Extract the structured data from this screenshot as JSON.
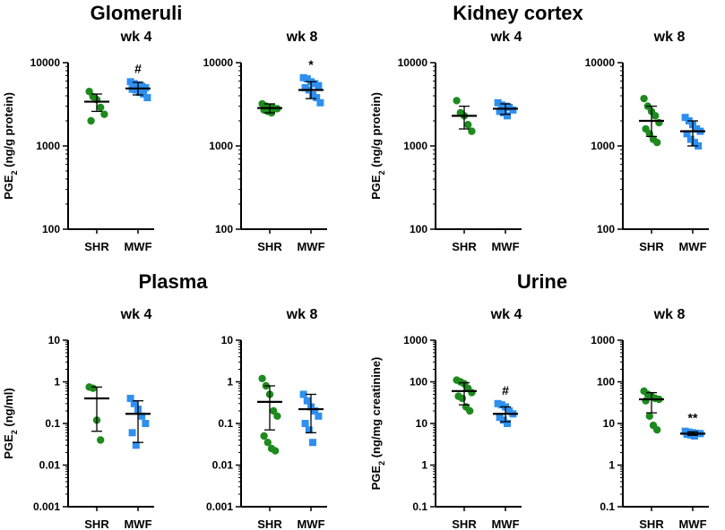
{
  "figure": {
    "colors": {
      "SHR": "#1e8a1e",
      "MWF": "#2e8fef",
      "axis": "#000000"
    },
    "markers": {
      "SHR": "circle",
      "MWF": "square"
    }
  },
  "groups": [
    {
      "title": "Glomeruli",
      "ylabel_prefix": "PGE",
      "ylabel_sub": "2",
      "ylabel_unit": " (ng/g protein)"
    },
    {
      "title": "Kidney cortex",
      "ylabel_prefix": "PGE",
      "ylabel_sub": "2",
      "ylabel_unit": " (ng/g protein)"
    },
    {
      "title": "Plasma",
      "ylabel_prefix": "PGE",
      "ylabel_sub": "2",
      "ylabel_unit": " (ng/ml)"
    },
    {
      "title": "Urine",
      "ylabel_prefix": "PGE",
      "ylabel_sub": "2",
      "ylabel_unit": " (ng/mg creatinine)"
    }
  ],
  "chart_data": [
    {
      "type": "scatter",
      "title": "wk 4",
      "group": "Glomeruli",
      "yscale": "log",
      "ylim": [
        100,
        10000
      ],
      "yticks": [
        100,
        1000,
        10000
      ],
      "ytick_labels": [
        "100",
        "1000",
        "10000"
      ],
      "categories": [
        "SHR",
        "MWF"
      ],
      "series": [
        {
          "name": "SHR",
          "points": [
            4500,
            3900,
            3600,
            2900,
            2400,
            2000
          ],
          "mean": 3400,
          "err": [
            2600,
            4200
          ]
        },
        {
          "name": "MWF",
          "points": [
            5900,
            5600,
            5400,
            5200,
            5000,
            4800,
            4700,
            4400,
            4200,
            3800
          ],
          "mean": 4900,
          "err": [
            4100,
            5800
          ]
        }
      ],
      "annotations": [
        {
          "category": "MWF",
          "text": "#"
        }
      ]
    },
    {
      "type": "scatter",
      "title": "wk 8",
      "group": "Glomeruli",
      "yscale": "log",
      "ylim": [
        100,
        10000
      ],
      "yticks": [
        100,
        1000,
        10000
      ],
      "ytick_labels": [
        "100",
        "1000",
        "10000"
      ],
      "categories": [
        "SHR",
        "MWF"
      ],
      "series": [
        {
          "name": "SHR",
          "points": [
            3200,
            3000,
            2900,
            2850,
            2800,
            2700,
            2600,
            2500
          ],
          "mean": 2850,
          "err": [
            2500,
            3200
          ]
        },
        {
          "name": "MWF",
          "points": [
            6600,
            6400,
            5900,
            5600,
            5300,
            5000,
            4700,
            4100,
            3800,
            3300
          ],
          "mean": 4700,
          "err": [
            3700,
            5900
          ]
        }
      ],
      "annotations": [
        {
          "category": "MWF",
          "text": "*"
        }
      ]
    },
    {
      "type": "scatter",
      "title": "wk 4",
      "group": "Kidney cortex",
      "yscale": "log",
      "ylim": [
        100,
        10000
      ],
      "yticks": [
        100,
        1000,
        10000
      ],
      "ytick_labels": [
        "100",
        "1000",
        "10000"
      ],
      "categories": [
        "SHR",
        "MWF"
      ],
      "series": [
        {
          "name": "SHR",
          "points": [
            3500,
            2500,
            2300,
            1800,
            1500
          ],
          "mean": 2300,
          "err": [
            1600,
            3000
          ]
        },
        {
          "name": "MWF",
          "points": [
            3300,
            3100,
            3000,
            2900,
            2700,
            2600,
            2500,
            2300
          ],
          "mean": 2800,
          "err": [
            2400,
            3200
          ]
        }
      ],
      "annotations": []
    },
    {
      "type": "scatter",
      "title": "wk 8",
      "group": "Kidney cortex",
      "yscale": "log",
      "ylim": [
        100,
        10000
      ],
      "yticks": [
        100,
        1000,
        10000
      ],
      "ytick_labels": [
        "100",
        "1000",
        "10000"
      ],
      "categories": [
        "SHR",
        "MWF"
      ],
      "series": [
        {
          "name": "SHR",
          "points": [
            3700,
            3000,
            2600,
            2300,
            1900,
            1600,
            1400,
            1200,
            1100
          ],
          "mean": 2000,
          "err": [
            1300,
            3000
          ]
        },
        {
          "name": "MWF",
          "points": [
            2200,
            2000,
            1800,
            1600,
            1500,
            1400,
            1200,
            1100,
            1000
          ],
          "mean": 1500,
          "err": [
            1000,
            2000
          ]
        }
      ],
      "annotations": []
    },
    {
      "type": "scatter",
      "title": "wk 4",
      "group": "Plasma",
      "yscale": "log",
      "ylim": [
        0.001,
        10
      ],
      "yticks": [
        0.001,
        0.01,
        0.1,
        1,
        10
      ],
      "ytick_labels": [
        "0.001",
        "0.01",
        "0.1",
        "1",
        "10"
      ],
      "categories": [
        "SHR",
        "MWF"
      ],
      "series": [
        {
          "name": "SHR",
          "points": [
            0.75,
            0.7,
            0.12,
            0.04
          ],
          "mean": 0.4,
          "err": [
            0.065,
            0.75
          ]
        },
        {
          "name": "MWF",
          "points": [
            0.4,
            0.3,
            0.22,
            0.15,
            0.1,
            0.06,
            0.03
          ],
          "mean": 0.17,
          "err": [
            0.035,
            0.35
          ]
        }
      ],
      "annotations": []
    },
    {
      "type": "scatter",
      "title": "wk 8",
      "group": "Plasma",
      "yscale": "log",
      "ylim": [
        0.001,
        10
      ],
      "yticks": [
        0.001,
        0.01,
        0.1,
        1,
        10
      ],
      "ytick_labels": [
        "0.001",
        "0.01",
        "0.1",
        "1",
        "10"
      ],
      "categories": [
        "SHR",
        "MWF"
      ],
      "series": [
        {
          "name": "SHR",
          "points": [
            1.2,
            0.8,
            0.5,
            0.2,
            0.15,
            0.05,
            0.035,
            0.025,
            0.022
          ],
          "mean": 0.33,
          "err": [
            0.07,
            0.8
          ]
        },
        {
          "name": "MWF",
          "points": [
            0.5,
            0.35,
            0.25,
            0.2,
            0.15,
            0.1,
            0.07,
            0.035
          ],
          "mean": 0.22,
          "err": [
            0.06,
            0.5
          ]
        }
      ],
      "annotations": []
    },
    {
      "type": "scatter",
      "title": "wk 4",
      "group": "Urine",
      "yscale": "log",
      "ylim": [
        0.1,
        1000
      ],
      "yticks": [
        0.1,
        1,
        10,
        100,
        1000
      ],
      "ytick_labels": [
        "0.1",
        "1",
        "10",
        "100",
        "1000"
      ],
      "categories": [
        "SHR",
        "MWF"
      ],
      "series": [
        {
          "name": "SHR",
          "points": [
            110,
            100,
            90,
            70,
            55,
            45,
            40,
            25,
            20
          ],
          "mean": 60,
          "err": [
            28,
            95
          ]
        },
        {
          "name": "MWF",
          "points": [
            30,
            28,
            25,
            20,
            17,
            14,
            12,
            10
          ],
          "mean": 17,
          "err": [
            11,
            25
          ]
        }
      ],
      "annotations": [
        {
          "category": "MWF",
          "text": "#"
        }
      ]
    },
    {
      "type": "scatter",
      "title": "wk 8",
      "group": "Urine",
      "yscale": "log",
      "ylim": [
        0.1,
        1000
      ],
      "yticks": [
        0.1,
        1,
        10,
        100,
        1000
      ],
      "ytick_labels": [
        "0.1",
        "1",
        "10",
        "100",
        "1000"
      ],
      "categories": [
        "SHR",
        "MWF"
      ],
      "series": [
        {
          "name": "SHR",
          "points": [
            60,
            50,
            45,
            40,
            38,
            35,
            15,
            9,
            7
          ],
          "mean": 38,
          "err": [
            18,
            55
          ]
        },
        {
          "name": "MWF",
          "points": [
            6.5,
            6.2,
            6.0,
            5.8,
            5.7,
            5.5,
            5.3,
            5.0
          ],
          "mean": 5.7,
          "err": [
            5.2,
            6.3
          ]
        }
      ],
      "annotations": [
        {
          "category": "MWF",
          "text": "**"
        }
      ]
    }
  ]
}
